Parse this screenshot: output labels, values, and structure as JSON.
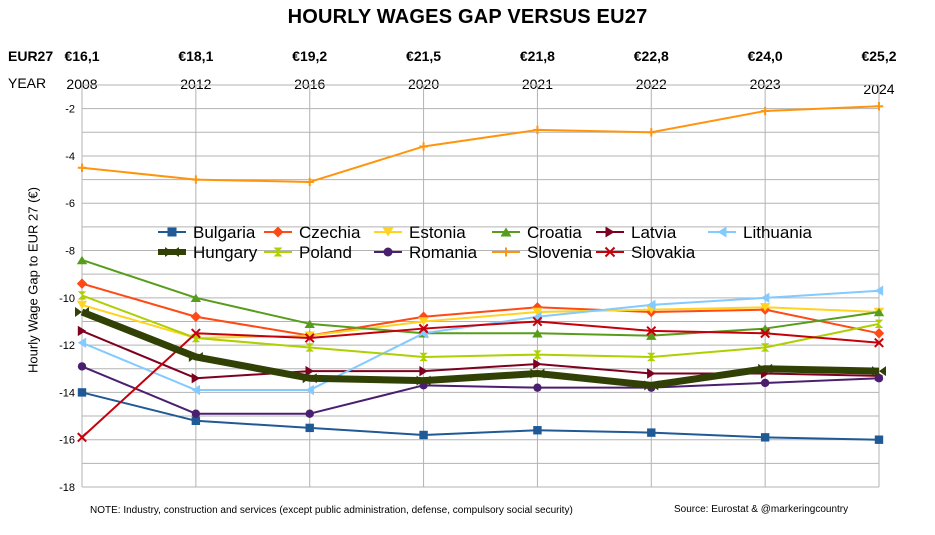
{
  "chart_data": {
    "type": "line",
    "title": "HOURLY WAGES GAP VERSUS EU27",
    "eur_row_label": "EUR27",
    "year_row_label": "YEAR",
    "eur27_values": [
      "€16,1",
      "€18,1",
      "€19,2",
      "€21,5",
      "€21,8",
      "€22,8",
      "€24,0",
      "€25,2"
    ],
    "categories": [
      "2008",
      "2012",
      "2016",
      "2020",
      "2021",
      "2022",
      "2023",
      "2024"
    ],
    "ylabel": "Hourly Wage Gap to EUR 27 (€)",
    "xlabel": "",
    "ylim": [
      -18,
      -1
    ],
    "yticks": [
      -18,
      -16,
      -14,
      -12,
      -10,
      -8,
      -6,
      -4,
      -2
    ],
    "grid": true,
    "legend_position": "middle-left",
    "note": "NOTE: Industry, construction and services (except public administration, defense, compulsory social security)",
    "source": "Source: Eurostat & @markeringcountry",
    "series": [
      {
        "name": "Bulgaria",
        "color": "#1f5a96",
        "marker": "square",
        "values": [
          -14.0,
          -15.2,
          -15.5,
          -15.8,
          -15.6,
          -15.7,
          -15.9,
          -16.0
        ]
      },
      {
        "name": "Czechia",
        "color": "#ff4a16",
        "marker": "diamond",
        "values": [
          -9.4,
          -10.8,
          -11.6,
          -10.8,
          -10.4,
          -10.6,
          -10.5,
          -11.5
        ]
      },
      {
        "name": "Estonia",
        "color": "#ffd320",
        "marker": "triangle-down",
        "values": [
          -10.3,
          -11.7,
          -11.6,
          -11.0,
          -10.6,
          -10.5,
          -10.4,
          -10.6
        ]
      },
      {
        "name": "Croatia",
        "color": "#579d1c",
        "marker": "triangle-up",
        "values": [
          -8.4,
          -10.0,
          -11.1,
          -11.5,
          -11.5,
          -11.6,
          -11.3,
          -10.6
        ]
      },
      {
        "name": "Latvia",
        "color": "#7e0021",
        "marker": "triangle-right",
        "values": [
          -11.4,
          -13.4,
          -13.1,
          -13.1,
          -12.8,
          -13.2,
          -13.2,
          -13.3
        ]
      },
      {
        "name": "Lithuania",
        "color": "#83caff",
        "marker": "triangle-left",
        "values": [
          -11.9,
          -13.9,
          -13.9,
          -11.5,
          -10.8,
          -10.3,
          -10.0,
          -9.7
        ]
      },
      {
        "name": "Hungary",
        "color": "#314004",
        "marker": "bowtie",
        "thick": true,
        "values": [
          -10.6,
          -12.5,
          -13.4,
          -13.5,
          -13.2,
          -13.7,
          -13.0,
          -13.1
        ]
      },
      {
        "name": "Poland",
        "color": "#aecf00",
        "marker": "hourglass",
        "values": [
          -9.9,
          -11.7,
          -12.1,
          -12.5,
          -12.4,
          -12.5,
          -12.1,
          -11.1
        ]
      },
      {
        "name": "Romania",
        "color": "#4b1f6f",
        "marker": "circle",
        "values": [
          -12.9,
          -14.9,
          -14.9,
          -13.7,
          -13.8,
          -13.8,
          -13.6,
          -13.4
        ]
      },
      {
        "name": "Slovenia",
        "color": "#ff950e",
        "marker": "plus",
        "values": [
          -4.5,
          -5.0,
          -5.1,
          -3.6,
          -2.9,
          -3.0,
          -2.1,
          -1.9
        ]
      },
      {
        "name": "Slovakia",
        "color": "#c5000b",
        "marker": "x",
        "values": [
          -15.9,
          -11.5,
          -11.7,
          -11.3,
          -11.0,
          -11.4,
          -11.5,
          -11.9
        ]
      }
    ]
  }
}
